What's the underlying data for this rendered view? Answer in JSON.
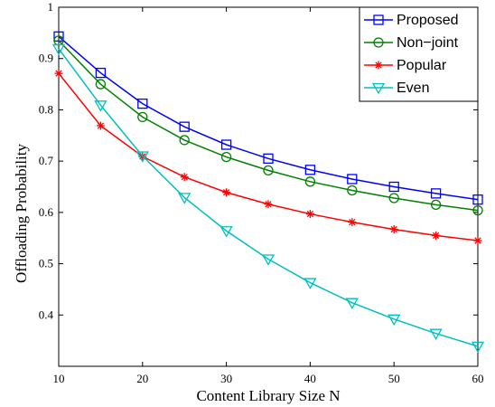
{
  "chart_data": {
    "type": "line",
    "title": "",
    "xlabel": "Content Library Size N",
    "ylabel": "Offloading Probability",
    "xlim": [
      10,
      60
    ],
    "ylim": [
      0.3,
      1.0
    ],
    "x_ticks": [
      "10",
      "20",
      "30",
      "40",
      "50",
      "60"
    ],
    "y_ticks": [
      "0.4",
      "0.5",
      "0.6",
      "0.7",
      "0.8",
      "0.9",
      "1"
    ],
    "grid": false,
    "legend_position": "top-right",
    "x": [
      10,
      15,
      20,
      25,
      30,
      35,
      40,
      45,
      50,
      55,
      60
    ],
    "series": [
      {
        "name": "Proposed",
        "color": "#0000ff",
        "marker": "square",
        "values": [
          0.943,
          0.872,
          0.812,
          0.767,
          0.732,
          0.705,
          0.683,
          0.665,
          0.65,
          0.637,
          0.625
        ]
      },
      {
        "name": "Non−joint",
        "color": "#008000",
        "marker": "circle",
        "values": [
          0.935,
          0.85,
          0.786,
          0.741,
          0.708,
          0.682,
          0.66,
          0.643,
          0.628,
          0.615,
          0.604
        ]
      },
      {
        "name": "Popular",
        "color": "#ff0000",
        "marker": "asterisk",
        "values": [
          0.871,
          0.769,
          0.709,
          0.669,
          0.639,
          0.616,
          0.597,
          0.581,
          0.567,
          0.555,
          0.545
        ]
      },
      {
        "name": "Even",
        "color": "#00bfbf",
        "marker": "triangle-down",
        "values": [
          0.919,
          0.809,
          0.71,
          0.629,
          0.564,
          0.509,
          0.463,
          0.424,
          0.392,
          0.364,
          0.339
        ]
      }
    ]
  }
}
